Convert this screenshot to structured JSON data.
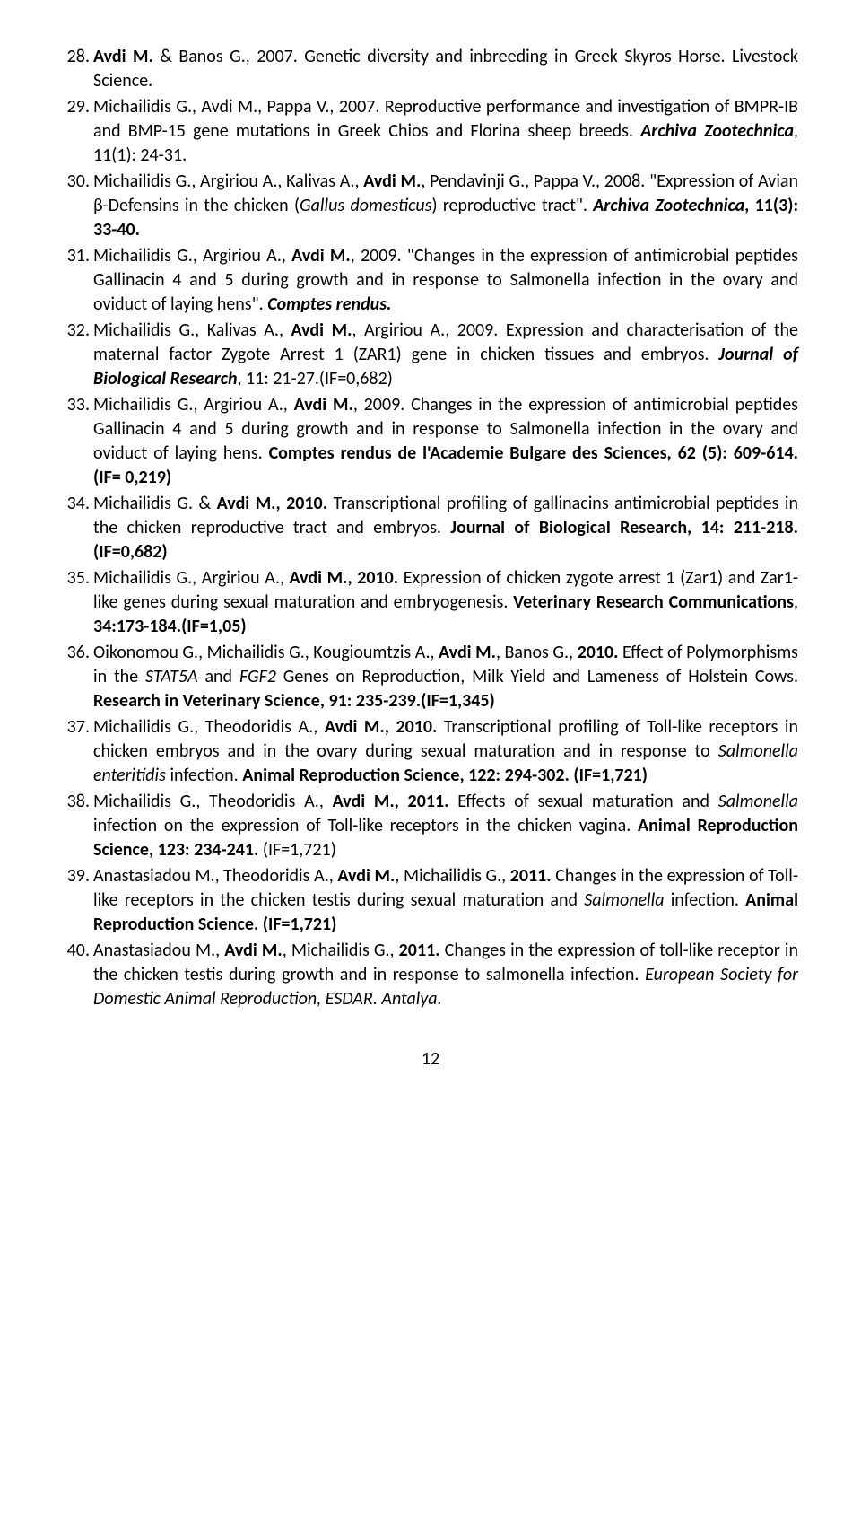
{
  "references": [
    {
      "num": "28.",
      "html": "<b>Avdi M.</b> & Banos G., 2007. Genetic diversity and inbreeding in Greek Skyros Horse. Livestock Science."
    },
    {
      "num": "29.",
      "html": "Michailidis G., Avdi M., Pappa V., 2007. Reproductive performance and investigation of BMPR-IB and BMP-15 gene mutations in Greek Chios and Florina sheep breeds. <b><i>Archiva Zootechnica</i></b>, 11(1): 24-31."
    },
    {
      "num": "30.",
      "html": "Michailidis G., Argiriou A., Kalivas A., <b>Avdi M.</b>, Pendavinji G., Pappa V., 2008. \"Expression of Avian β-Defensins in the chicken (<i>Gallus domesticus</i>) reproductive tract\". <b><i>Archiva Zootechnica</i>, 11(3): 33-40.</b>"
    },
    {
      "num": "31.",
      "html": "Michailidis G., Argiriou A., <b>Avdi M.</b>, 2009. \"Changes in the expression of antimicrobial peptides Gallinacin 4 and 5 during growth and in response to Salmonella infection in the ovary and oviduct of laying hens\". <b><i>Comptes rendus.</i></b>"
    },
    {
      "num": "32.",
      "html": "Michailidis G., Kalivas A., <b>Avdi M.</b>, Argiriou A., 2009. Expression and characterisation of the maternal factor Zygote Arrest 1 (ZAR1) gene in chicken tissues and embryos. <b><i>Journal of Biological Research</i></b>, 11: 21-27.(IF=0,682)"
    },
    {
      "num": "33.",
      "html": "Michailidis G., Argiriou A., <b>Avdi M.</b>, 2009. Changes in the expression of antimicrobial peptides Gallinacin 4 and 5 during growth and in response to Salmonella infection in the ovary and oviduct of laying hens. <b>Comptes rendus de l'Academie Bulgare des Sciences, 62 (5): 609-614. (IF= 0,219)</b>"
    },
    {
      "num": "34.",
      "html": "Michailidis G. & <b>Avdi M., 2010.</b> Transcriptional profiling of gallinacins antimicrobial peptides in the chicken reproductive tract and embryos. <b>Journal of Biological Research, 14: 211-218. (IF=0,682)</b>"
    },
    {
      "num": "35.",
      "html": "Michailidis G., Argiriou A., <b>Avdi M., 2010.</b> Expression of chicken zygote arrest 1 (Zar1) and Zar1-like genes during sexual maturation and embryogenesis. <b>Veterinary Research Communications</b>, <b>34:173-184.(IF=1,05)</b>"
    },
    {
      "num": "36.",
      "html": "Oikonomou G., Michailidis G., Kougioumtzis A., <b>Avdi M.</b>, Banos G., <b>2010.</b> Effect of Polymorphisms in the <i>STAT5A</i> and <i>FGF2</i> Genes on Reproduction, Milk Yield and Lameness of Holstein Cows. <b>Research in Veterinary Science, 91: 235-239.(IF=1,345)</b>"
    },
    {
      "num": "37.",
      "html": "Michailidis G., Theodoridis A., <b>Avdi M., 2010.</b> Transcriptional profiling of Toll-like receptors in chicken embryos and in the ovary during sexual maturation and in response to <i>Salmonella enteritidis</i> infection. <b>Animal Reproduction Science, 122: 294-302. (IF=1,721)</b>"
    },
    {
      "num": "38.",
      "html": "Michailidis G., Theodoridis A., <b>Avdi M., 2011.</b> Effects of sexual maturation and <i>Salmonella</i> infection on the expression of Toll-like receptors in the chicken vagina. <b>Animal Reproduction Science, 123: 234-241.</b> (IF=1,721)"
    },
    {
      "num": "39.",
      "html": "Anastasiadou M., Theodoridis A., <b>Avdi M.</b>, Michailidis G., <b>2011.</b> Changes in the expression of Toll-like receptors in the chicken testis during sexual maturation and <i>Salmonella</i> infection. <b>Animal Reproduction Science. (IF=1,721)</b>"
    },
    {
      "num": "40.",
      "html": "Anastasiadou M., <b>Avdi M.</b>, Michailidis G., <b>2011.</b> Changes in the expression of toll-like receptor in the chicken testis during growth and in response to salmonella infection. <i>European Society for Domestic Animal Reproduction, ESDAR. Antalya.</i>"
    }
  ],
  "pageNumber": "12"
}
